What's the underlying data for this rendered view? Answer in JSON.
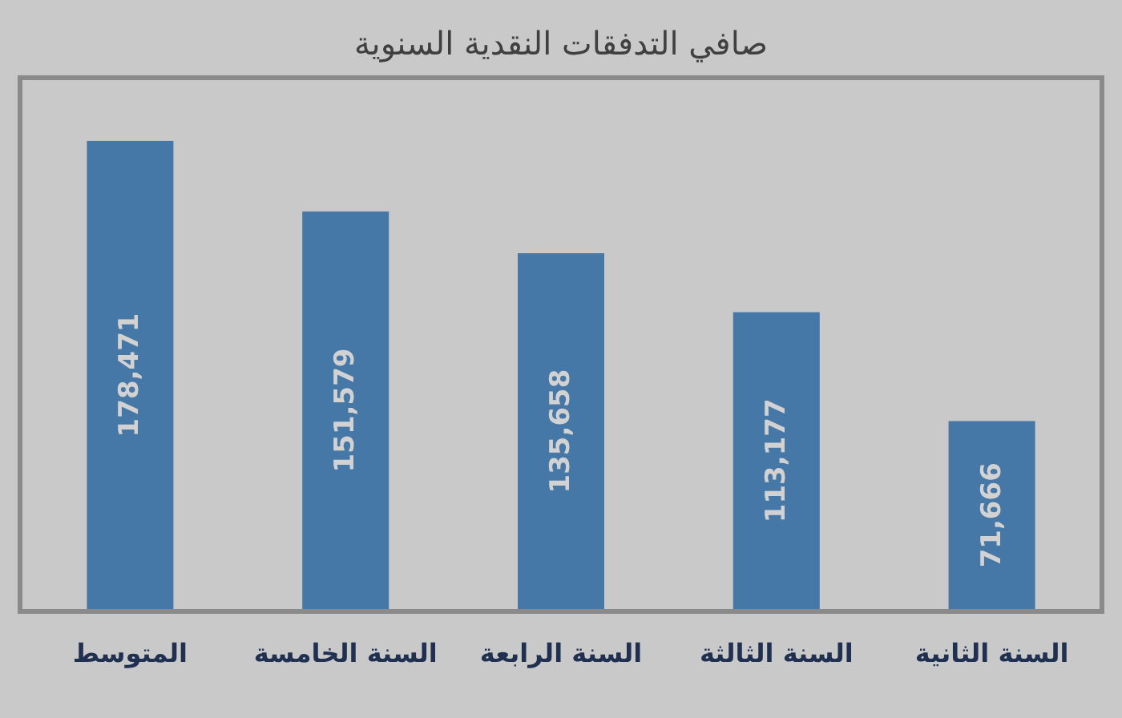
{
  "chart_data": {
    "type": "bar",
    "title": "صافي التدفقات النقدية السنوية",
    "categories": [
      "المتوسط",
      "السنة الخامسة",
      "السنة الرابعة",
      "السنة الثالثة",
      "السنة الثانية"
    ],
    "values": [
      178471,
      151579,
      135658,
      113177,
      71666
    ],
    "value_labels": [
      "178,471",
      "151,579",
      "135,658",
      "113,177",
      "71,666"
    ],
    "color": "#4577a7"
  }
}
